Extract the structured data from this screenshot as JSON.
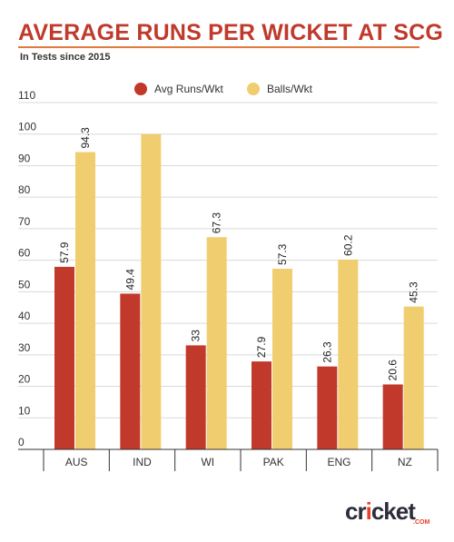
{
  "title": "AVERAGE RUNS PER WICKET AT SCG",
  "subtitle": "In Tests since 2015",
  "brand": {
    "name_part1": "cr",
    "name_dot": "i",
    "name_part2": "cket",
    "suffix": ".COM"
  },
  "colors": {
    "avg": "#c0392b",
    "balls": "#f0cd6e",
    "title": "#c0392b",
    "rule": "#e07a3a"
  },
  "chart_data": {
    "type": "bar",
    "title": "AVERAGE RUNS PER WICKET AT SCG",
    "categories": [
      "AUS",
      "IND",
      "WI",
      "PAK",
      "ENG",
      "NZ"
    ],
    "series": [
      {
        "name": "Avg Runs/Wkt",
        "values": [
          57.9,
          49.4,
          33,
          27.9,
          26.3,
          20.6
        ],
        "labels": [
          "57.9",
          "49.4",
          "33",
          "27.9",
          "26.3",
          "20.6"
        ],
        "color": "#c0392b"
      },
      {
        "name": "Balls/Wkt",
        "values": [
          94.3,
          100,
          67.3,
          57.3,
          60.2,
          45.3
        ],
        "labels": [
          "94.3",
          "",
          "67.3",
          "57.3",
          "60.2",
          "45.3"
        ],
        "color": "#f0cd6e"
      }
    ],
    "ylim": [
      0,
      110
    ],
    "yticks": [
      0,
      10,
      20,
      30,
      40,
      50,
      60,
      70,
      80,
      90,
      100,
      110
    ],
    "grid": true,
    "legend": "top-center",
    "xlabel": "",
    "ylabel": ""
  }
}
